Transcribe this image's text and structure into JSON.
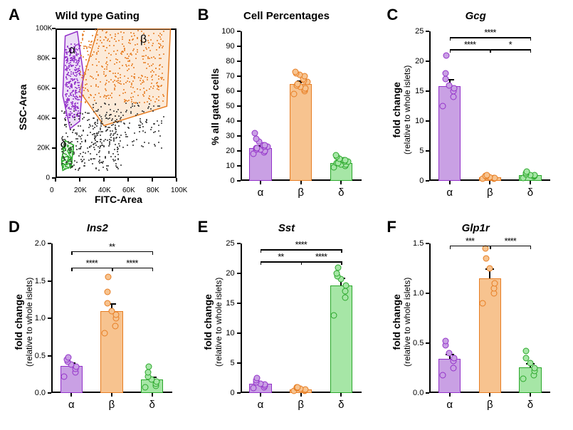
{
  "colors": {
    "alpha_fill": "#c9a0e4",
    "alpha_edge": "#9331c9",
    "beta_fill": "#f7c38f",
    "beta_edge": "#e77d22",
    "delta_fill": "#a6e6a6",
    "delta_edge": "#2aa72a",
    "axis": "#000000",
    "bg": "#ffffff",
    "scatter_black": "#333333"
  },
  "fonts": {
    "letter_pt": 22,
    "title_pt": 15,
    "label_pt": 14,
    "tick_pt": 11
  },
  "panelA": {
    "letter": "A",
    "title": "Wild type Gating",
    "xlabel": "FITC-Area",
    "ylabel": "SSC-Area",
    "xlim": [
      0,
      100
    ],
    "ylim": [
      0,
      100
    ],
    "xticks": [
      "0",
      "20K",
      "40K",
      "60K",
      "80K",
      "100K"
    ],
    "yticks": [
      "0",
      "20K",
      "40K",
      "60K",
      "80K",
      "100K"
    ],
    "gates": {
      "alpha": {
        "label": "α",
        "points": [
          [
            8,
            95
          ],
          [
            18,
            98
          ],
          [
            23,
            70
          ],
          [
            20,
            38
          ],
          [
            12,
            33
          ],
          [
            6,
            55
          ]
        ]
      },
      "beta": {
        "label": "β",
        "points": [
          [
            20,
            58
          ],
          [
            35,
            100
          ],
          [
            95,
            100
          ],
          [
            92,
            48
          ],
          [
            40,
            35
          ]
        ]
      },
      "delta": {
        "label": "δ",
        "points": [
          [
            5,
            12
          ],
          [
            8,
            25
          ],
          [
            15,
            22
          ],
          [
            13,
            8
          ],
          [
            6,
            5
          ]
        ]
      }
    }
  },
  "panelB": {
    "letter": "B",
    "title": "Cell Percentages",
    "ylabel": "% all gated cells",
    "ylim": [
      0,
      100
    ],
    "ytick_step": 10,
    "categories": [
      "α",
      "β",
      "δ"
    ],
    "means": [
      22,
      65,
      12
    ],
    "sems": [
      2,
      2,
      1
    ],
    "points": {
      "α": [
        18,
        19,
        20,
        20,
        21,
        21,
        22,
        22,
        23,
        23,
        24,
        24,
        26,
        28,
        32
      ],
      "β": [
        58,
        60,
        61,
        62,
        63,
        64,
        64,
        65,
        66,
        67,
        68,
        70,
        71,
        72,
        73
      ],
      "δ": [
        9,
        10,
        10,
        11,
        11,
        12,
        12,
        12,
        13,
        13,
        14,
        14,
        15,
        16,
        17
      ]
    }
  },
  "panelC": {
    "letter": "C",
    "title_italic": "Gcg",
    "ylabel": "fold change",
    "ylabel_sub": "(relative to whole islets)",
    "ylim": [
      0,
      25
    ],
    "ytick_step": 5,
    "categories": [
      "α",
      "β",
      "δ"
    ],
    "means": [
      15.8,
      0.6,
      1.0
    ],
    "sems": [
      1.2,
      0.2,
      0.2
    ],
    "points": {
      "α": [
        12.5,
        14,
        15,
        15.5,
        16,
        17,
        18,
        21
      ],
      "β": [
        0.3,
        0.4,
        0.5,
        0.5,
        0.6,
        0.7,
        0.8,
        0.9
      ],
      "δ": [
        0.5,
        0.7,
        0.8,
        0.9,
        1.0,
        1.1,
        1.3,
        1.5
      ]
    },
    "sig": [
      {
        "from": 0,
        "to": 1,
        "y": 22,
        "label": "****"
      },
      {
        "from": 0,
        "to": 2,
        "y": 24,
        "label": "****"
      },
      {
        "from": 1,
        "to": 2,
        "y": 22,
        "label": "*"
      }
    ]
  },
  "panelD": {
    "letter": "D",
    "title_italic": "Ins2",
    "ylabel": "fold change",
    "ylabel_sub": "(relative to whole islets)",
    "ylim": [
      0,
      2.0
    ],
    "ytick_step": 0.5,
    "categories": [
      "α",
      "β",
      "δ"
    ],
    "means": [
      0.36,
      1.1,
      0.18
    ],
    "sems": [
      0.05,
      0.1,
      0.04
    ],
    "points": {
      "α": [
        0.22,
        0.28,
        0.32,
        0.35,
        0.38,
        0.42,
        0.45,
        0.48
      ],
      "β": [
        0.8,
        0.9,
        1.0,
        1.05,
        1.1,
        1.2,
        1.35,
        1.55
      ],
      "δ": [
        0.08,
        0.1,
        0.12,
        0.15,
        0.18,
        0.22,
        0.28,
        0.35
      ]
    },
    "sig": [
      {
        "from": 0,
        "to": 1,
        "y": 1.68,
        "label": "****"
      },
      {
        "from": 0,
        "to": 2,
        "y": 1.9,
        "label": "**"
      },
      {
        "from": 1,
        "to": 2,
        "y": 1.68,
        "label": "****"
      }
    ]
  },
  "panelE": {
    "letter": "E",
    "title_italic": "Sst",
    "ylabel": "fold change",
    "ylabel_sub": "(relative to whole islets)",
    "ylim": [
      0,
      25
    ],
    "ytick_step": 5,
    "categories": [
      "α",
      "β",
      "δ"
    ],
    "means": [
      1.5,
      0.6,
      18.0
    ],
    "sems": [
      0.3,
      0.2,
      1.3
    ],
    "points": {
      "α": [
        0.8,
        1.0,
        1.2,
        1.4,
        1.6,
        1.8,
        2.2,
        2.5
      ],
      "β": [
        0.3,
        0.4,
        0.5,
        0.6,
        0.7,
        0.8,
        0.9,
        1.0
      ],
      "δ": [
        13,
        16,
        17,
        18,
        19,
        19.5,
        20,
        21
      ]
    },
    "sig": [
      {
        "from": 0,
        "to": 1,
        "y": 22,
        "label": "**"
      },
      {
        "from": 0,
        "to": 2,
        "y": 24,
        "label": "****"
      },
      {
        "from": 1,
        "to": 2,
        "y": 22,
        "label": "****"
      }
    ]
  },
  "panelF": {
    "letter": "F",
    "title_italic": "Glp1r",
    "ylabel": "fold change",
    "ylabel_sub": "(relative to whole islets)",
    "ylim": [
      0,
      1.5
    ],
    "ytick_step": 0.5,
    "categories": [
      "α",
      "β",
      "δ"
    ],
    "means": [
      0.34,
      1.15,
      0.26
    ],
    "sems": [
      0.05,
      0.1,
      0.04
    ],
    "points": {
      "α": [
        0.18,
        0.25,
        0.32,
        0.35,
        0.4,
        0.48,
        0.52
      ],
      "β": [
        0.9,
        1.0,
        1.05,
        1.1,
        1.25,
        1.35,
        1.45
      ],
      "δ": [
        0.14,
        0.18,
        0.22,
        0.25,
        0.3,
        0.35,
        0.42
      ]
    },
    "sig": [
      {
        "from": 0,
        "to": 1,
        "y": 1.48,
        "label": "***"
      },
      {
        "from": 1,
        "to": 2,
        "y": 1.48,
        "label": "****"
      }
    ]
  }
}
